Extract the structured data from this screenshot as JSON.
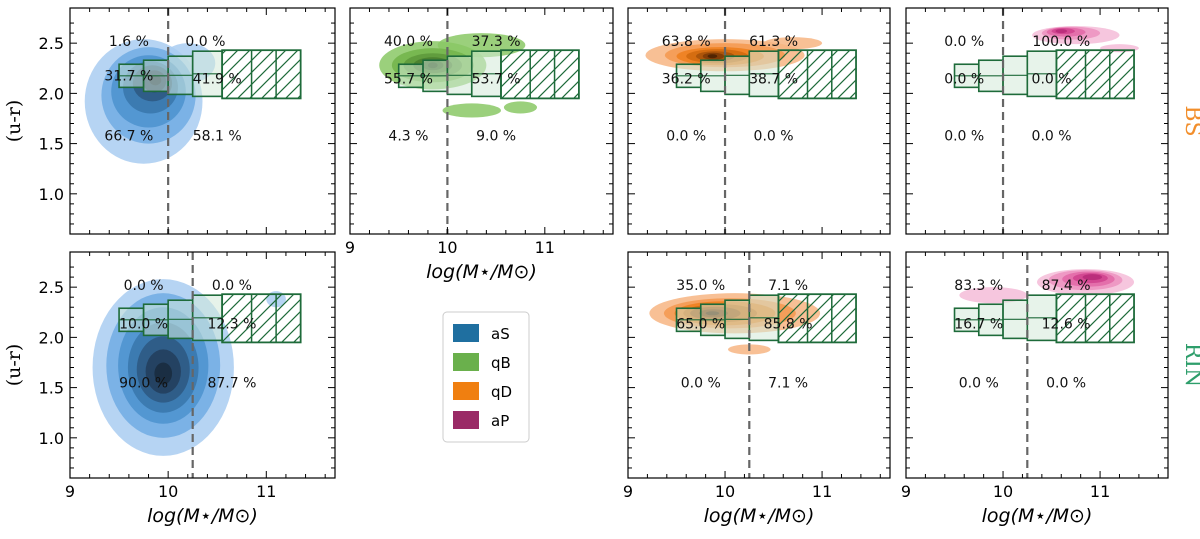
{
  "chart_data": {
    "type": "contour",
    "xlabel": "log(M⋆/M⊙)",
    "ylabel": "(u-r)",
    "x_ticks": [
      "9",
      "10",
      "11"
    ],
    "y_ticks": [
      "1.0",
      "1.5",
      "2.0",
      "2.5"
    ],
    "xlim": [
      9,
      11.7
    ],
    "ylim": [
      0.6,
      2.85
    ],
    "row_labels": [
      {
        "label": "BS",
        "color": "#f28e2b"
      },
      {
        "label": "RIN",
        "color": "#2e9e6b"
      }
    ],
    "legend": [
      {
        "label": "aS",
        "color": "#1f6fa0"
      },
      {
        "label": "qB",
        "color": "#6ab04c"
      },
      {
        "label": "qD",
        "color": "#f07f10"
      },
      {
        "label": "aP",
        "color": "#9a2a66"
      }
    ],
    "reference_boxes": [
      {
        "x0": 9.5,
        "x1": 9.75,
        "ylo": 2.06,
        "yhi": 2.29
      },
      {
        "x0": 9.75,
        "x1": 10.0,
        "ylo": 2.02,
        "yhi": 2.33
      },
      {
        "x0": 10.0,
        "x1": 10.25,
        "ylo": 1.99,
        "yhi": 2.37
      },
      {
        "x0": 10.25,
        "x1": 10.55,
        "ylo": 1.97,
        "yhi": 2.42
      },
      {
        "x0": 10.55,
        "x1": 11.35,
        "ylo": 1.95,
        "yhi": 2.43,
        "hatched": true
      }
    ],
    "panels": [
      {
        "id": "bs-aS",
        "row": "BS",
        "class": "aS",
        "mass_cut": 10.0,
        "show_x_axis": false,
        "show_y_axis": true,
        "percentages": [
          {
            "text": "1.6 %",
            "x": 9.6,
            "y": 2.52
          },
          {
            "text": "0.0 %",
            "x": 10.38,
            "y": 2.52
          },
          {
            "text": "31.7 %",
            "x": 9.6,
            "y": 2.18
          },
          {
            "text": "41.9 %",
            "x": 10.5,
            "y": 2.15
          },
          {
            "text": "66.7 %",
            "x": 9.6,
            "y": 1.58
          },
          {
            "text": "58.1 %",
            "x": 10.5,
            "y": 1.58
          }
        ]
      },
      {
        "id": "bs-qB",
        "row": "BS",
        "class": "qB",
        "mass_cut": 10.0,
        "show_x_axis": true,
        "show_y_axis": false,
        "percentages": [
          {
            "text": "40.0 %",
            "x": 9.6,
            "y": 2.52
          },
          {
            "text": "37.3 %",
            "x": 10.5,
            "y": 2.52
          },
          {
            "text": "55.7 %",
            "x": 9.6,
            "y": 2.15
          },
          {
            "text": "53.7 %",
            "x": 10.5,
            "y": 2.15
          },
          {
            "text": "4.3 %",
            "x": 9.6,
            "y": 1.58
          },
          {
            "text": "9.0 %",
            "x": 10.5,
            "y": 1.58
          }
        ]
      },
      {
        "id": "bs-qD",
        "row": "BS",
        "class": "qD",
        "mass_cut": 10.0,
        "show_x_axis": false,
        "show_y_axis": false,
        "percentages": [
          {
            "text": "63.8 %",
            "x": 9.6,
            "y": 2.52
          },
          {
            "text": "61.3 %",
            "x": 10.5,
            "y": 2.52
          },
          {
            "text": "36.2 %",
            "x": 9.6,
            "y": 2.15
          },
          {
            "text": "38.7 %",
            "x": 10.5,
            "y": 2.15
          },
          {
            "text": "0.0 %",
            "x": 9.6,
            "y": 1.58
          },
          {
            "text": "0.0 %",
            "x": 10.5,
            "y": 1.58
          }
        ]
      },
      {
        "id": "bs-aP",
        "row": "BS",
        "class": "aP",
        "mass_cut": 10.0,
        "show_x_axis": false,
        "show_y_axis": false,
        "percentages": [
          {
            "text": "0.0 %",
            "x": 9.6,
            "y": 2.52
          },
          {
            "text": "100.0 %",
            "x": 10.6,
            "y": 2.52
          },
          {
            "text": "0.0 %",
            "x": 9.6,
            "y": 2.15
          },
          {
            "text": "0.0 %",
            "x": 10.5,
            "y": 2.15
          },
          {
            "text": "0.0 %",
            "x": 9.6,
            "y": 1.58
          },
          {
            "text": "0.0 %",
            "x": 10.5,
            "y": 1.58
          }
        ]
      },
      {
        "id": "rin-aS",
        "row": "RIN",
        "class": "aS",
        "mass_cut": 10.25,
        "show_x_axis": true,
        "show_y_axis": true,
        "percentages": [
          {
            "text": "0.0 %",
            "x": 9.75,
            "y": 2.52
          },
          {
            "text": "0.0 %",
            "x": 10.65,
            "y": 2.52
          },
          {
            "text": "10.0 %",
            "x": 9.75,
            "y": 2.14
          },
          {
            "text": "12.3 %",
            "x": 10.65,
            "y": 2.14
          },
          {
            "text": "90.0 %",
            "x": 9.75,
            "y": 1.55
          },
          {
            "text": "87.7 %",
            "x": 10.65,
            "y": 1.55
          }
        ]
      },
      {
        "id": "rin-qD",
        "row": "RIN",
        "class": "qD",
        "mass_cut": 10.25,
        "show_x_axis": true,
        "show_y_axis": false,
        "percentages": [
          {
            "text": "35.0 %",
            "x": 9.75,
            "y": 2.52
          },
          {
            "text": "7.1 %",
            "x": 10.65,
            "y": 2.52
          },
          {
            "text": "65.0 %",
            "x": 9.75,
            "y": 2.14
          },
          {
            "text": "85.8 %",
            "x": 10.65,
            "y": 2.14
          },
          {
            "text": "0.0 %",
            "x": 9.75,
            "y": 1.55
          },
          {
            "text": "7.1 %",
            "x": 10.65,
            "y": 1.55
          }
        ]
      },
      {
        "id": "rin-aP",
        "row": "RIN",
        "class": "aP",
        "mass_cut": 10.25,
        "show_x_axis": true,
        "show_y_axis": false,
        "percentages": [
          {
            "text": "83.3 %",
            "x": 9.75,
            "y": 2.52
          },
          {
            "text": "87.4 %",
            "x": 10.65,
            "y": 2.52
          },
          {
            "text": "16.7 %",
            "x": 9.75,
            "y": 2.14
          },
          {
            "text": "12.6 %",
            "x": 10.65,
            "y": 2.14
          },
          {
            "text": "0.0 %",
            "x": 9.75,
            "y": 1.55
          },
          {
            "text": "0.0 %",
            "x": 10.65,
            "y": 1.55
          }
        ]
      }
    ]
  }
}
